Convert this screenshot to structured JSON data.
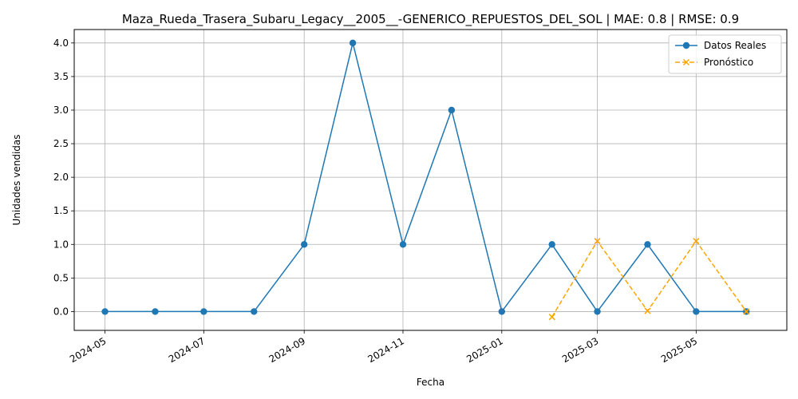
{
  "chart_data": {
    "type": "line",
    "title": "Maza_Rueda_Trasera_Subaru_Legacy__2005__-GENERICO_REPUESTOS_DEL_SOL | MAE: 0.8 | RMSE: 0.9",
    "xlabel": "Fecha",
    "ylabel": "Unidades vendidas",
    "ylim": [
      -0.28,
      4.2
    ],
    "xlim": [
      "2024-04-12",
      "2025-06-26"
    ],
    "grid": true,
    "legend_position": "upper-right",
    "x_ticks": [
      "2024-05",
      "2024-07",
      "2024-09",
      "2024-11",
      "2025-01",
      "2025-03",
      "2025-05"
    ],
    "y_ticks": [
      "0.0",
      "0.5",
      "1.0",
      "1.5",
      "2.0",
      "2.5",
      "3.0",
      "3.5",
      "4.0"
    ],
    "series": [
      {
        "name": "Datos Reales",
        "color": "#1f77b4",
        "style": "solid",
        "marker": "circle",
        "x": [
          "2024-05-01",
          "2024-06-01",
          "2024-07-01",
          "2024-08-01",
          "2024-09-01",
          "2024-10-01",
          "2024-11-01",
          "2024-12-01",
          "2025-01-01",
          "2025-02-01",
          "2025-03-01",
          "2025-04-01",
          "2025-05-01",
          "2025-06-01"
        ],
        "y": [
          0,
          0,
          0,
          0,
          1,
          4,
          1,
          3,
          0,
          1,
          0,
          1,
          0,
          0
        ]
      },
      {
        "name": "Pronóstico",
        "color": "#ffa500",
        "style": "dashed",
        "marker": "x",
        "x": [
          "2025-02-01",
          "2025-03-01",
          "2025-04-01",
          "2025-05-01",
          "2025-06-01"
        ],
        "y": [
          -0.08,
          1.05,
          0.01,
          1.05,
          0.0
        ]
      }
    ]
  }
}
